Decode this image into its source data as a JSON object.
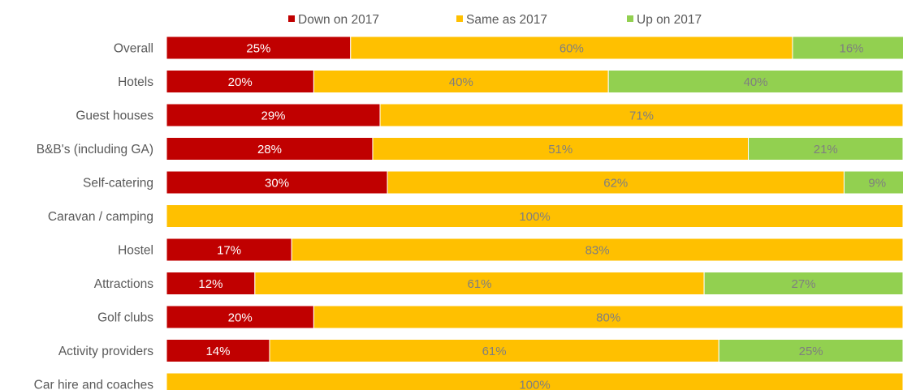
{
  "chart_data": {
    "type": "bar",
    "orientation": "horizontal",
    "stacked": true,
    "percent": true,
    "legend_position": "top",
    "grid": false,
    "xlim": [
      0,
      100
    ],
    "categories": [
      "Overall",
      "Hotels",
      "Guest houses",
      "B&B's (including GA)",
      "Self-catering",
      "Caravan / camping",
      "Hostel",
      "Attractions",
      "Golf clubs",
      "Activity providers",
      "Car hire and coaches"
    ],
    "series": [
      {
        "name": "Down on 2017",
        "color": "#c00000",
        "label_color": "#ffffff",
        "values": [
          25,
          20,
          29,
          28,
          30,
          0,
          17,
          12,
          20,
          14,
          0
        ],
        "labels": [
          "25%",
          "20%",
          "29%",
          "28%",
          "30%",
          "",
          "17%",
          "12%",
          "20%",
          "14%",
          ""
        ]
      },
      {
        "name": "Same as 2017",
        "color": "#ffc000",
        "label_color": "#7f7f7f",
        "values": [
          60,
          40,
          71,
          51,
          62,
          100,
          83,
          61,
          80,
          61,
          100
        ],
        "labels": [
          "60%",
          "40%",
          "71%",
          "51%",
          "62%",
          "100%",
          "83%",
          "61%",
          "80%",
          "61%",
          "100%"
        ]
      },
      {
        "name": "Up on 2017",
        "color": "#92d050",
        "label_color": "#7f7f7f",
        "values": [
          16,
          40,
          0,
          21,
          9,
          0,
          0,
          27,
          0,
          25,
          0
        ],
        "labels": [
          "16%",
          "40%",
          "",
          "21%",
          "9%",
          "",
          "",
          "27%",
          "",
          "25%",
          ""
        ]
      }
    ]
  }
}
